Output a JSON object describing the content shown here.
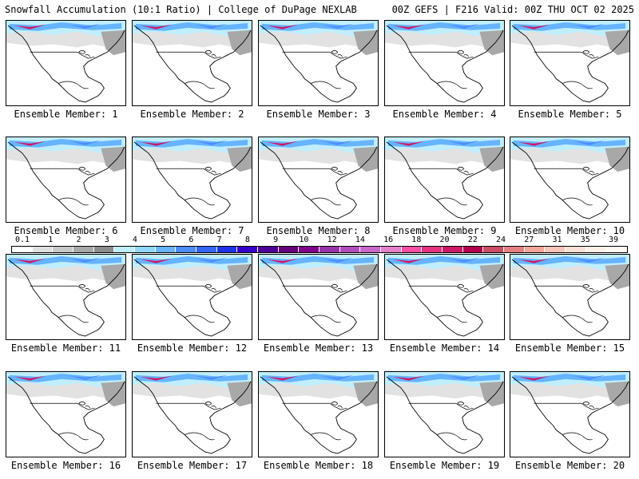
{
  "header": {
    "title_left": "Snowfall Accumulation (10:1 Ratio) | College of DuPage NEXLAB",
    "title_right": "00Z GEFS | F216 Valid: 00Z THU OCT 02 2025"
  },
  "members": [
    "Ensemble Member: 1",
    "Ensemble Member: 2",
    "Ensemble Member: 3",
    "Ensemble Member: 4",
    "Ensemble Member: 5",
    "Ensemble Member: 6",
    "Ensemble Member: 7",
    "Ensemble Member: 8",
    "Ensemble Member: 9",
    "Ensemble Member: 10",
    "Ensemble Member: 11",
    "Ensemble Member: 12",
    "Ensemble Member: 13",
    "Ensemble Member: 14",
    "Ensemble Member: 15",
    "Ensemble Member: 16",
    "Ensemble Member: 17",
    "Ensemble Member: 18",
    "Ensemble Member: 19",
    "Ensemble Member: 20"
  ],
  "colorbar": {
    "labels": [
      "0.1",
      "1",
      "2",
      "3",
      "4",
      "5",
      "6",
      "7",
      "8",
      "9",
      "10",
      "12",
      "14",
      "16",
      "18",
      "20",
      "22",
      "24",
      "27",
      "31",
      "35",
      "39"
    ],
    "colors": [
      "#ffffff",
      "#e0e0e0",
      "#c8c8c8",
      "#a8a8a8",
      "#8c8c8c",
      "#bfeeff",
      "#8fd8ff",
      "#66b3ff",
      "#4d8cff",
      "#3366ff",
      "#1a33e6",
      "#3300cc",
      "#4d0099",
      "#66007a",
      "#80008c",
      "#9933aa",
      "#b34dbb",
      "#cc66cc",
      "#e680cc",
      "#ff4da6",
      "#e6337f",
      "#cc1a66",
      "#b3004d",
      "#cc4d66",
      "#e68080",
      "#f2a69a",
      "#f7c4b8",
      "#fbe0d6",
      "#fff0e6",
      "#fff8f0"
    ]
  }
}
